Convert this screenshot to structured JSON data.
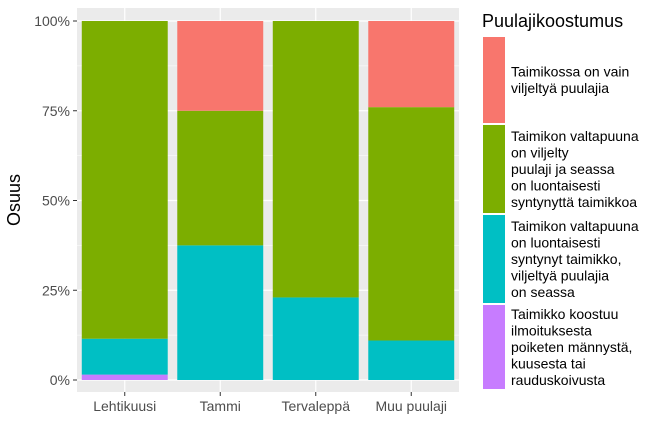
{
  "chart_data": {
    "type": "bar",
    "stacked": true,
    "ylabel": "Osuus",
    "xlabel": "",
    "ylim": [
      0,
      1
    ],
    "y_ticks": [
      "0%",
      "25%",
      "50%",
      "75%",
      "100%"
    ],
    "y_tick_values": [
      0,
      0.25,
      0.5,
      0.75,
      1.0
    ],
    "grid": true,
    "legend_position": "right",
    "categories": [
      "Lehtikuusi",
      "Tammi",
      "Tervaleppä",
      "Muu puulaji"
    ],
    "legend_title": "Puulajikoostumus",
    "series": [
      {
        "name": "Taimikossa on vain viljeltyä puulajia",
        "legend_lines": [
          "Taimikossa on vain",
          "viljeltyä puulajia"
        ],
        "color": "#F8766D",
        "values": [
          0.0,
          0.25,
          0.0,
          0.24
        ]
      },
      {
        "name": "Taimikon valtapuuna on viljelty puulaji ja seassa on luontaisesti syntynyttä taimikkoa",
        "legend_lines": [
          "Taimikon valtapuuna",
          "on viljelty",
          "puulaji ja seassa",
          "on luontaisesti",
          "syntynyttä taimikkoa"
        ],
        "color": "#7CAE00",
        "values": [
          0.885,
          0.375,
          0.77,
          0.65
        ]
      },
      {
        "name": "Taimikon valtapuuna on luontaisesti syntynyt taimikko, viljeltyä puulajia on seassa",
        "legend_lines": [
          "Taimikon valtapuuna",
          "on luontaisesti",
          "syntynyt taimikko,",
          "viljeltyä puulajia",
          "on seassa"
        ],
        "color": "#00BFC4",
        "values": [
          0.1,
          0.375,
          0.23,
          0.11
        ]
      },
      {
        "name": "Taimikko koostuu ilmoituksesta poiketen männystä, kuusesta tai rauduskoivusta",
        "legend_lines": [
          "Taimikko koostuu",
          "ilmoituksesta",
          "poiketen männystä,",
          "kuusesta tai",
          "rauduskoivusta"
        ],
        "color": "#C77CFF",
        "values": [
          0.015,
          0.0,
          0.0,
          0.0
        ]
      }
    ]
  }
}
